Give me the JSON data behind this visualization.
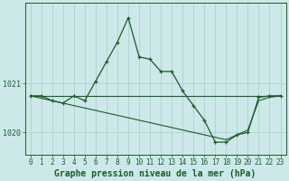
{
  "hours": [
    0,
    1,
    2,
    3,
    4,
    5,
    6,
    7,
    8,
    9,
    10,
    11,
    12,
    13,
    14,
    15,
    16,
    17,
    18,
    19,
    20,
    21,
    22,
    23
  ],
  "pressure_main": [
    1020.75,
    1020.75,
    1020.65,
    1020.6,
    1020.75,
    1020.65,
    1021.05,
    1021.45,
    1021.85,
    1022.35,
    1021.55,
    1021.5,
    1021.25,
    1021.25,
    1020.85,
    1020.55,
    1020.25,
    1019.8,
    1019.8,
    1019.95,
    1020.0,
    1020.72,
    1020.75,
    1020.75
  ],
  "pressure_trend": [
    1020.75,
    1020.7,
    1020.65,
    1020.6,
    1020.55,
    1020.5,
    1020.45,
    1020.4,
    1020.35,
    1020.3,
    1020.25,
    1020.2,
    1020.15,
    1020.1,
    1020.05,
    1020.0,
    1019.95,
    1019.9,
    1019.85,
    1019.95,
    1020.05,
    1020.65,
    1020.72,
    1020.75
  ],
  "pressure_flat": [
    1020.75,
    1020.75,
    1020.75,
    1020.75,
    1020.75,
    1020.75,
    1020.75,
    1020.75,
    1020.75,
    1020.75,
    1020.75,
    1020.75,
    1020.75,
    1020.75,
    1020.75,
    1020.75,
    1020.75,
    1020.75,
    1020.75,
    1020.75,
    1020.75,
    1020.75,
    1020.75,
    1020.75
  ],
  "ylim_min": 1019.55,
  "ylim_max": 1022.65,
  "ytick_positions": [
    1020.0,
    1021.0
  ],
  "ytick_labels": [
    "1020",
    "1021"
  ],
  "bg_color": "#cce8e8",
  "grid_color": "#aacccc",
  "line_color": "#1a5c28",
  "title": "Graphe pression niveau de la mer (hPa)",
  "title_fontsize": 7.0,
  "tick_fontsize": 6.0
}
